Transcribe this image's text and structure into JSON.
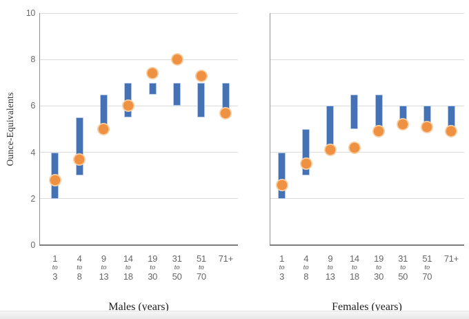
{
  "colors": {
    "bar_blue": "#4472B4",
    "bar_border": "#B3C7E8",
    "dot_orange": "#EE9143",
    "dot_inner_ring": "#F9CD9F",
    "gridline": "#DADADA",
    "axis_line": "#8A8A8A",
    "tick_text": "#696969",
    "title_text": "#1C1C1C",
    "background": "#FFFFFF"
  },
  "chart": {
    "ylabel": "Ounce-Equivalents",
    "ylim": [
      0,
      10
    ],
    "yticks": [
      0,
      2,
      4,
      6,
      8,
      10
    ],
    "grid": "horizontal",
    "legend": "none"
  },
  "chart_data": [
    {
      "type": "range-bar-with-point",
      "panel": "males",
      "xlabel": "Males (years)",
      "categories": [
        "1 to 3",
        "4 to 8",
        "9 to 13",
        "14 to 18",
        "19 to 30",
        "31 to 50",
        "51 to 70",
        "71+"
      ],
      "bar_ranges": [
        [
          2,
          4
        ],
        [
          3,
          5.5
        ],
        [
          5,
          6.5
        ],
        [
          5.5,
          7
        ],
        [
          6.5,
          7
        ],
        [
          6,
          7
        ],
        [
          5.5,
          7
        ],
        [
          5.5,
          7
        ]
      ],
      "point_values": [
        2.8,
        3.7,
        5.0,
        6.0,
        7.4,
        8.0,
        7.3,
        5.7
      ]
    },
    {
      "type": "range-bar-with-point",
      "panel": "females",
      "xlabel": "Females (years)",
      "categories": [
        "1 to 3",
        "4 to 8",
        "9 to 13",
        "14 to 18",
        "19 to 30",
        "31 to 50",
        "51 to 70",
        "71+"
      ],
      "bar_ranges": [
        [
          2,
          4
        ],
        [
          3,
          5
        ],
        [
          4,
          6
        ],
        [
          5,
          6.5
        ],
        [
          5,
          6.5
        ],
        [
          5,
          6
        ],
        [
          5,
          6
        ],
        [
          5,
          6
        ]
      ],
      "point_values": [
        2.6,
        3.5,
        4.1,
        4.2,
        4.9,
        5.2,
        5.1,
        4.9
      ]
    }
  ]
}
